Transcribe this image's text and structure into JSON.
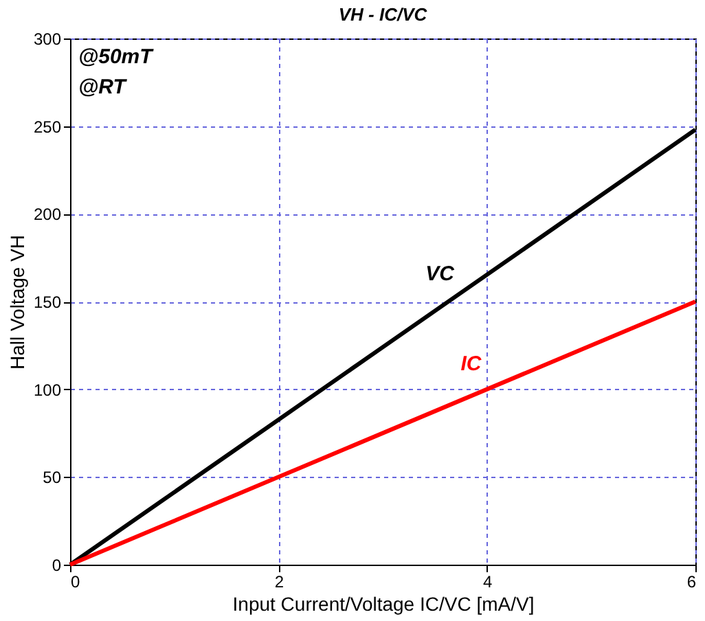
{
  "chart_data": {
    "type": "line",
    "title": "VH - IC/VC",
    "xlabel": "Input Current/Voltage IC/VC [mA/V]",
    "ylabel": "Hall Voltage VH",
    "x": [
      0,
      6
    ],
    "series": [
      {
        "name": "VC",
        "color": "#000000",
        "values": [
          0,
          248
        ]
      },
      {
        "name": "IC",
        "color": "#ff0000",
        "values": [
          0,
          150
        ]
      }
    ],
    "xlim": [
      0,
      6
    ],
    "xticks": [
      0,
      2,
      4,
      6
    ],
    "ylim": [
      0,
      300
    ],
    "yticks": [
      0,
      50,
      100,
      150,
      200,
      250,
      300
    ],
    "grid": true,
    "line_style": "solid",
    "marker": "none",
    "annotations": [
      "@50mT",
      "@RT"
    ]
  }
}
